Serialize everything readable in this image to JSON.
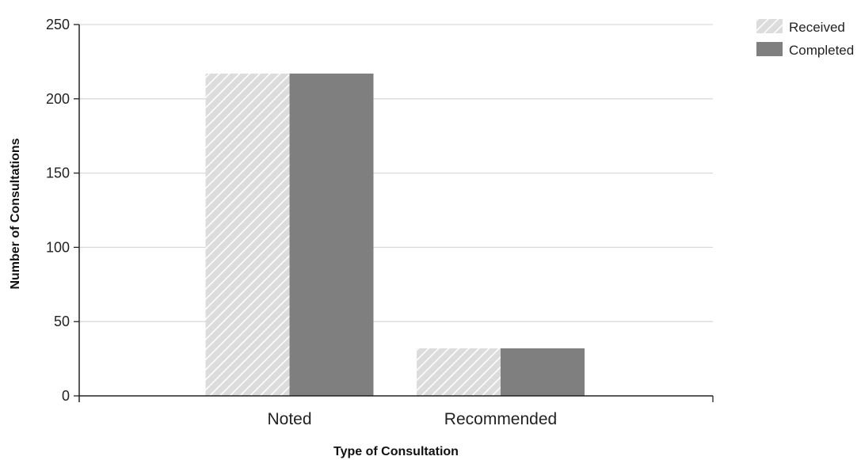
{
  "chart_data": {
    "type": "bar",
    "categories": [
      "Noted",
      "Recommended"
    ],
    "series": [
      {
        "name": "Received",
        "values": [
          217,
          32
        ],
        "color": "#d9d9d9",
        "pattern": "diagonal-hatch"
      },
      {
        "name": "Completed",
        "values": [
          217,
          32
        ],
        "color": "#7f7f7f",
        "pattern": "solid"
      }
    ],
    "xlabel": "Type of Consultation",
    "ylabel": "Number of Consultations",
    "ylim": [
      0,
      250
    ],
    "yticks": [
      0,
      50,
      100,
      150,
      200,
      250
    ],
    "grid": true,
    "legend_position": "top-right"
  }
}
